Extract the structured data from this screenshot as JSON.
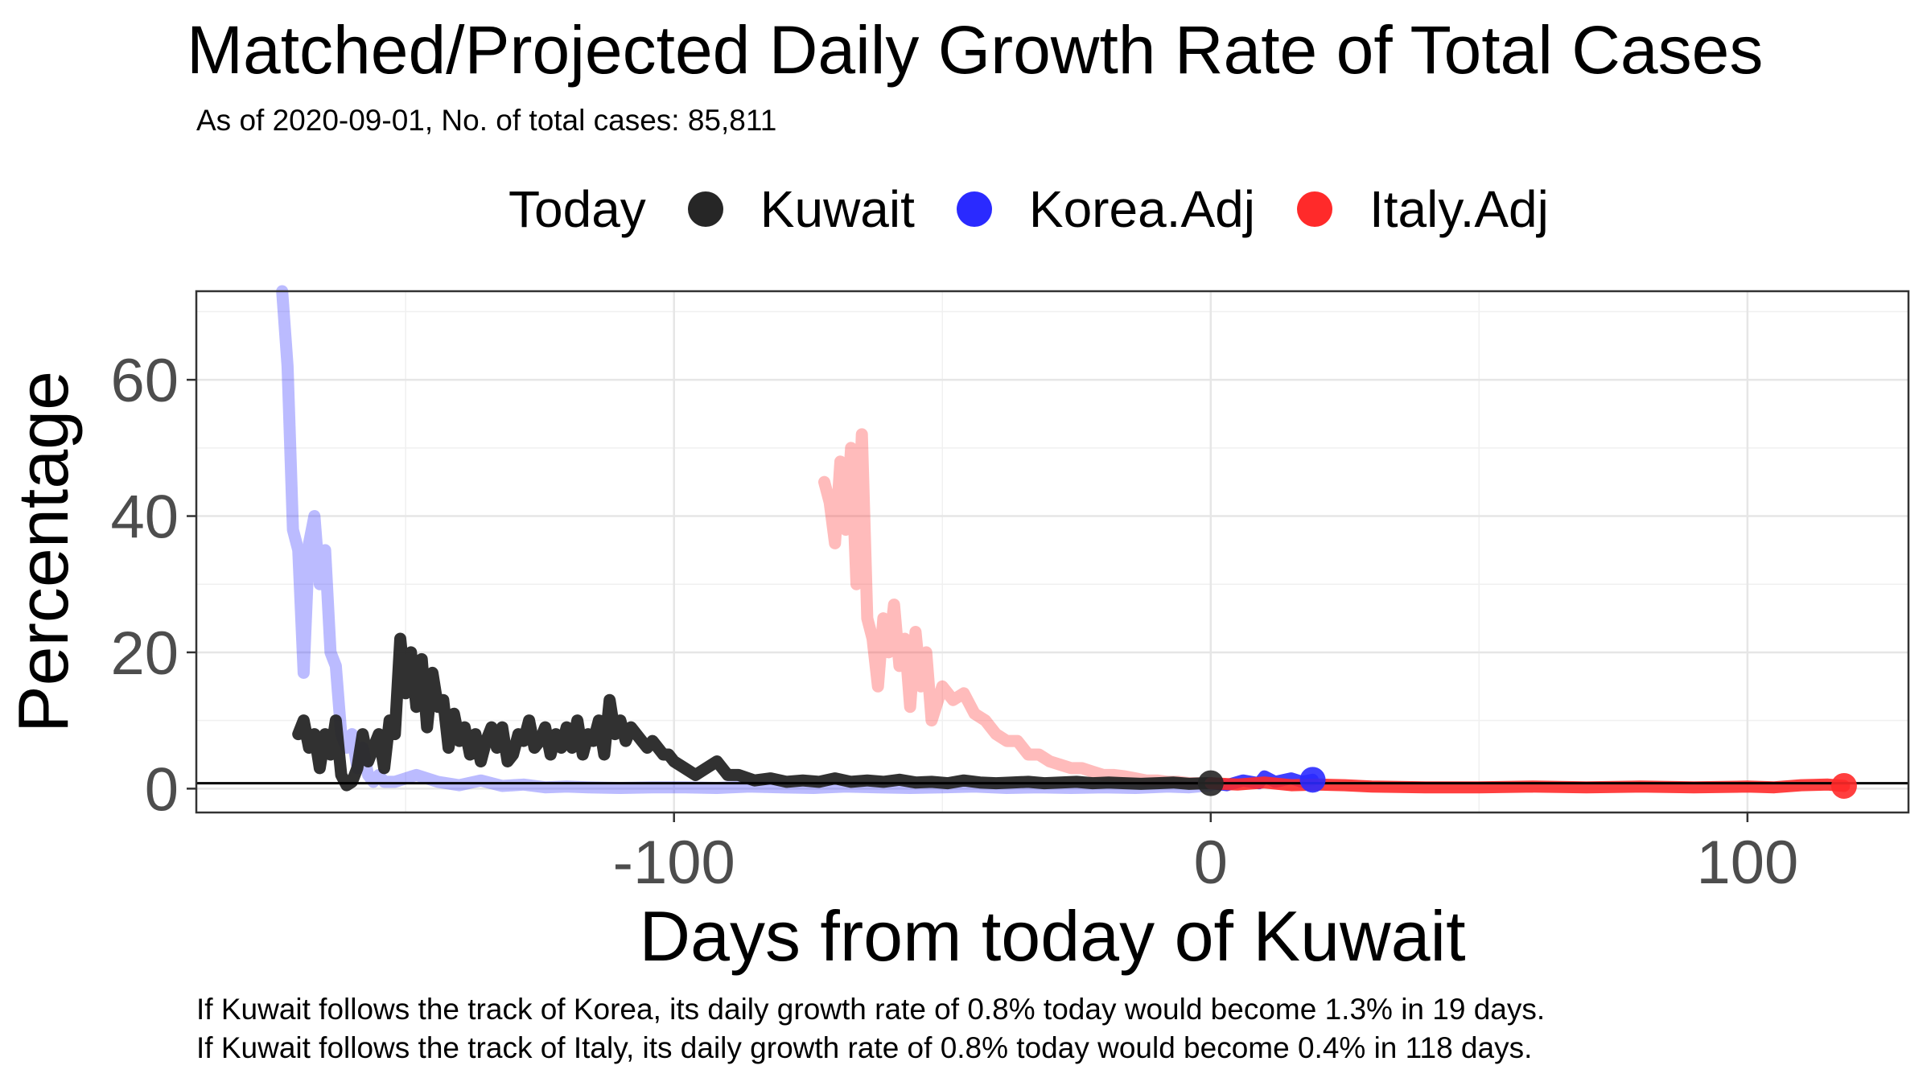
{
  "chart_data": {
    "type": "line",
    "title": "Matched/Projected Daily Growth Rate of Total Cases",
    "subtitle": "As of 2020-09-01, No. of total cases: 85,811",
    "xlabel": "Days from today of Kuwait",
    "ylabel": "Percentage",
    "xlim": [
      -189,
      130
    ],
    "ylim": [
      -3.5,
      73
    ],
    "x_ticks": [
      -100,
      0,
      100
    ],
    "x_tick_labels": [
      "-100",
      "0",
      "100"
    ],
    "y_ticks": [
      0,
      20,
      40,
      60
    ],
    "y_tick_labels": [
      "0",
      "20",
      "40",
      "60"
    ],
    "grid": true,
    "legend_position": "top",
    "legend_title": "Today",
    "reference_line_y": 0.8,
    "series": [
      {
        "name": "Korea.Adj",
        "color": "#2a2aff",
        "x": [
          -173,
          -172,
          -171,
          -170,
          -169,
          -168,
          -167,
          -166,
          -165,
          -164,
          -163,
          -162,
          -161,
          -160,
          -159,
          -158,
          -157,
          -156,
          -155,
          -154,
          -152,
          -148,
          -144,
          -140,
          -136,
          -132,
          -128,
          -124,
          -120,
          -116,
          -110,
          -104,
          -98,
          -92,
          -86,
          -80,
          -74,
          -68,
          -62,
          -56,
          -50,
          -44,
          -38,
          -32,
          -26,
          -20,
          -14,
          -8,
          -4,
          0
        ],
        "y": [
          73,
          62,
          38,
          35,
          17,
          36,
          40,
          30,
          35,
          20,
          18,
          8,
          6,
          8,
          3,
          6,
          2,
          1,
          2,
          1,
          1,
          2,
          1,
          0.5,
          1.2,
          0.4,
          0.6,
          0.2,
          0.3,
          0.2,
          0.1,
          0.2,
          0.2,
          0.1,
          0.3,
          0.2,
          0.1,
          0.3,
          0.2,
          0.1,
          0.2,
          0.3,
          0.1,
          0.2,
          0.1,
          0.2,
          0.1,
          0.3,
          0.2,
          0.5
        ],
        "projected_x": [
          0,
          3,
          6,
          9,
          10,
          12,
          15,
          17,
          19
        ],
        "projected_y": [
          0.8,
          0.5,
          1.2,
          0.8,
          1.8,
          1.0,
          1.5,
          1.0,
          1.3
        ],
        "today_marker": {
          "x": 19,
          "y": 1.3
        }
      },
      {
        "name": "Italy.Adj",
        "color": "#ff2a2a",
        "x": [
          -72,
          -71,
          -70,
          -69,
          -68,
          -67,
          -66,
          -65,
          -64,
          -63,
          -62,
          -61,
          -60,
          -59,
          -58,
          -57,
          -56,
          -55,
          -54,
          -53,
          -52,
          -50,
          -48,
          -46,
          -44,
          -42,
          -40,
          -38,
          -36,
          -34,
          -32,
          -30,
          -28,
          -26,
          -24,
          -22,
          -20,
          -18,
          -16,
          -14,
          -12,
          -10,
          -8,
          -6,
          -4,
          -2,
          0
        ],
        "y": [
          45,
          42,
          36,
          48,
          38,
          50,
          30,
          52,
          25,
          22,
          15,
          25,
          20,
          27,
          18,
          22,
          12,
          23,
          15,
          20,
          10,
          15,
          13,
          14,
          11,
          10,
          8,
          7,
          7,
          5,
          5,
          4,
          3.5,
          3,
          3,
          2.5,
          2,
          2,
          1.8,
          1.5,
          1.2,
          1.2,
          1,
          1,
          0.8,
          0.8,
          0.8
        ],
        "projected_x": [
          0,
          5,
          10,
          15,
          20,
          25,
          30,
          40,
          50,
          60,
          70,
          80,
          90,
          100,
          105,
          110,
          115,
          118
        ],
        "projected_y": [
          0.8,
          0.6,
          0.9,
          0.5,
          0.6,
          0.5,
          0.3,
          0.2,
          0.2,
          0.3,
          0.2,
          0.3,
          0.2,
          0.3,
          0.2,
          0.5,
          0.6,
          0.4
        ],
        "today_marker": {
          "x": 118,
          "y": 0.4
        }
      },
      {
        "name": "Kuwait",
        "color": "#262626",
        "x": [
          -170,
          -169,
          -168,
          -167,
          -166,
          -165,
          -164,
          -163,
          -162,
          -161,
          -160,
          -159,
          -158,
          -157,
          -156,
          -155,
          -154,
          -153,
          -152,
          -151,
          -150,
          -149,
          -148,
          -147,
          -146,
          -145,
          -144,
          -143,
          -142,
          -141,
          -140,
          -139,
          -138,
          -137,
          -136,
          -135,
          -134,
          -133,
          -132,
          -131,
          -130,
          -129,
          -128,
          -127,
          -126,
          -125,
          -124,
          -123,
          -122,
          -121,
          -120,
          -119,
          -118,
          -117,
          -116,
          -115,
          -114,
          -113,
          -112,
          -111,
          -110,
          -109,
          -108,
          -107,
          -106,
          -105,
          -104,
          -103,
          -102,
          -101,
          -100,
          -98,
          -96,
          -94,
          -92,
          -90,
          -88,
          -85,
          -82,
          -79,
          -76,
          -73,
          -70,
          -67,
          -64,
          -61,
          -58,
          -55,
          -52,
          -49,
          -46,
          -43,
          -40,
          -37,
          -34,
          -31,
          -28,
          -25,
          -22,
          -19,
          -16,
          -13,
          -10,
          -7,
          -4,
          -1,
          0
        ],
        "y": [
          8,
          10,
          6,
          8,
          3,
          8,
          5,
          10,
          2,
          0.5,
          1,
          3,
          8,
          4,
          6,
          8,
          3,
          10,
          8,
          22,
          14,
          20,
          12,
          19,
          9,
          17,
          12,
          13,
          6,
          11,
          7,
          9,
          5,
          8,
          4,
          7,
          9,
          6,
          9,
          4,
          5,
          8,
          7,
          10,
          6,
          7,
          9,
          5,
          8,
          6,
          9,
          6,
          10,
          5,
          8,
          7,
          10,
          5,
          13,
          8,
          10,
          7,
          9,
          8,
          7,
          6,
          7,
          6,
          5,
          5,
          4,
          3,
          2,
          3,
          4,
          2,
          2,
          1.2,
          1.5,
          1,
          1.2,
          1,
          1.5,
          1,
          1.2,
          1,
          1.3,
          0.9,
          1,
          0.8,
          1.2,
          0.9,
          0.8,
          0.9,
          1,
          0.8,
          0.9,
          1,
          0.8,
          0.9,
          0.8,
          0.7,
          0.8,
          0.9,
          0.7,
          0.8,
          0.8
        ],
        "today_marker": {
          "x": 0,
          "y": 0.8
        }
      }
    ],
    "captions": [
      "If Kuwait follows the track of Korea, its daily growth rate of 0.8% today would become 1.3% in 19 days.",
      "If Kuwait follows the track of Italy, its daily growth rate of 0.8% today would become 0.4% in 118 days."
    ]
  },
  "legend": {
    "title": "Today",
    "items": [
      {
        "label": "Kuwait",
        "color": "#262626"
      },
      {
        "label": "Korea.Adj",
        "color": "#2a2aff"
      },
      {
        "label": "Italy.Adj",
        "color": "#ff2a2a"
      }
    ]
  }
}
